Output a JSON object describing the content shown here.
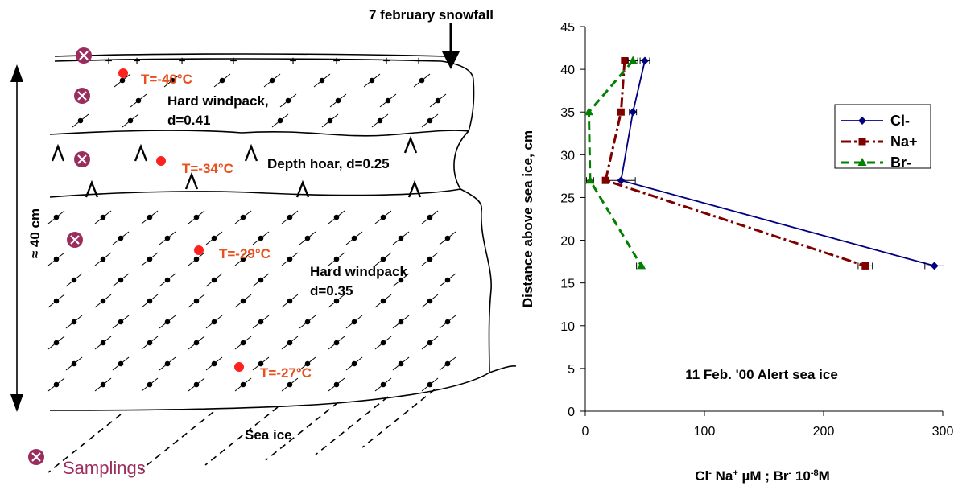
{
  "diagram": {
    "snowfall_label": "7 february snowfall",
    "thickness_label": "≈ 40 cm",
    "layers": [
      {
        "name": "Hard windpack,",
        "density": "d=0.41"
      },
      {
        "name": "Depth hoar, d=0.25"
      },
      {
        "name": "Hard windpack",
        "density": "d=0.35"
      }
    ],
    "temperatures": [
      "T=-40°C",
      "T=-34°C",
      "T=-29°C",
      "T=-27°C"
    ],
    "sea_ice_label": "Sea ice",
    "legend_label": "Samplings",
    "colors": {
      "temperature": "#e8501e",
      "sampling": "#9b2d5e",
      "dot": "#ff2020"
    }
  },
  "chart_data": {
    "type": "line",
    "title": "11 Feb. '00 Alert sea ice",
    "ylabel": "Distance above sea ice, cm",
    "xlabel": {
      "parts": [
        "Cl",
        "-",
        " Na",
        "+",
        " µM ; Br",
        "-",
        " 10",
        "-8",
        "M"
      ]
    },
    "xlim": [
      0,
      300
    ],
    "ylim": [
      0,
      45
    ],
    "xticks": [
      0,
      100,
      200,
      300
    ],
    "yticks": [
      0,
      5,
      10,
      15,
      20,
      25,
      30,
      35,
      40,
      45
    ],
    "legend_position": "top-right",
    "series": [
      {
        "name": "Cl-",
        "color": "#000080",
        "dash": "solid",
        "marker": "diamond",
        "x": [
          50,
          40,
          30,
          293
        ],
        "y": [
          41,
          35,
          27,
          17
        ],
        "err": [
          4,
          3,
          12,
          8
        ]
      },
      {
        "name": "Na+",
        "color": "#800000",
        "dash": "dashdot",
        "marker": "square",
        "x": [
          33,
          30,
          17,
          235
        ],
        "y": [
          41,
          35,
          27,
          17
        ],
        "err": [
          2,
          0,
          0,
          6
        ]
      },
      {
        "name": "Br-",
        "color": "#008000",
        "dash": "dash",
        "marker": "triangle",
        "x": [
          40,
          3,
          4,
          47
        ],
        "y": [
          41,
          35,
          27,
          17
        ],
        "err": [
          4,
          0,
          3,
          4
        ]
      }
    ]
  }
}
